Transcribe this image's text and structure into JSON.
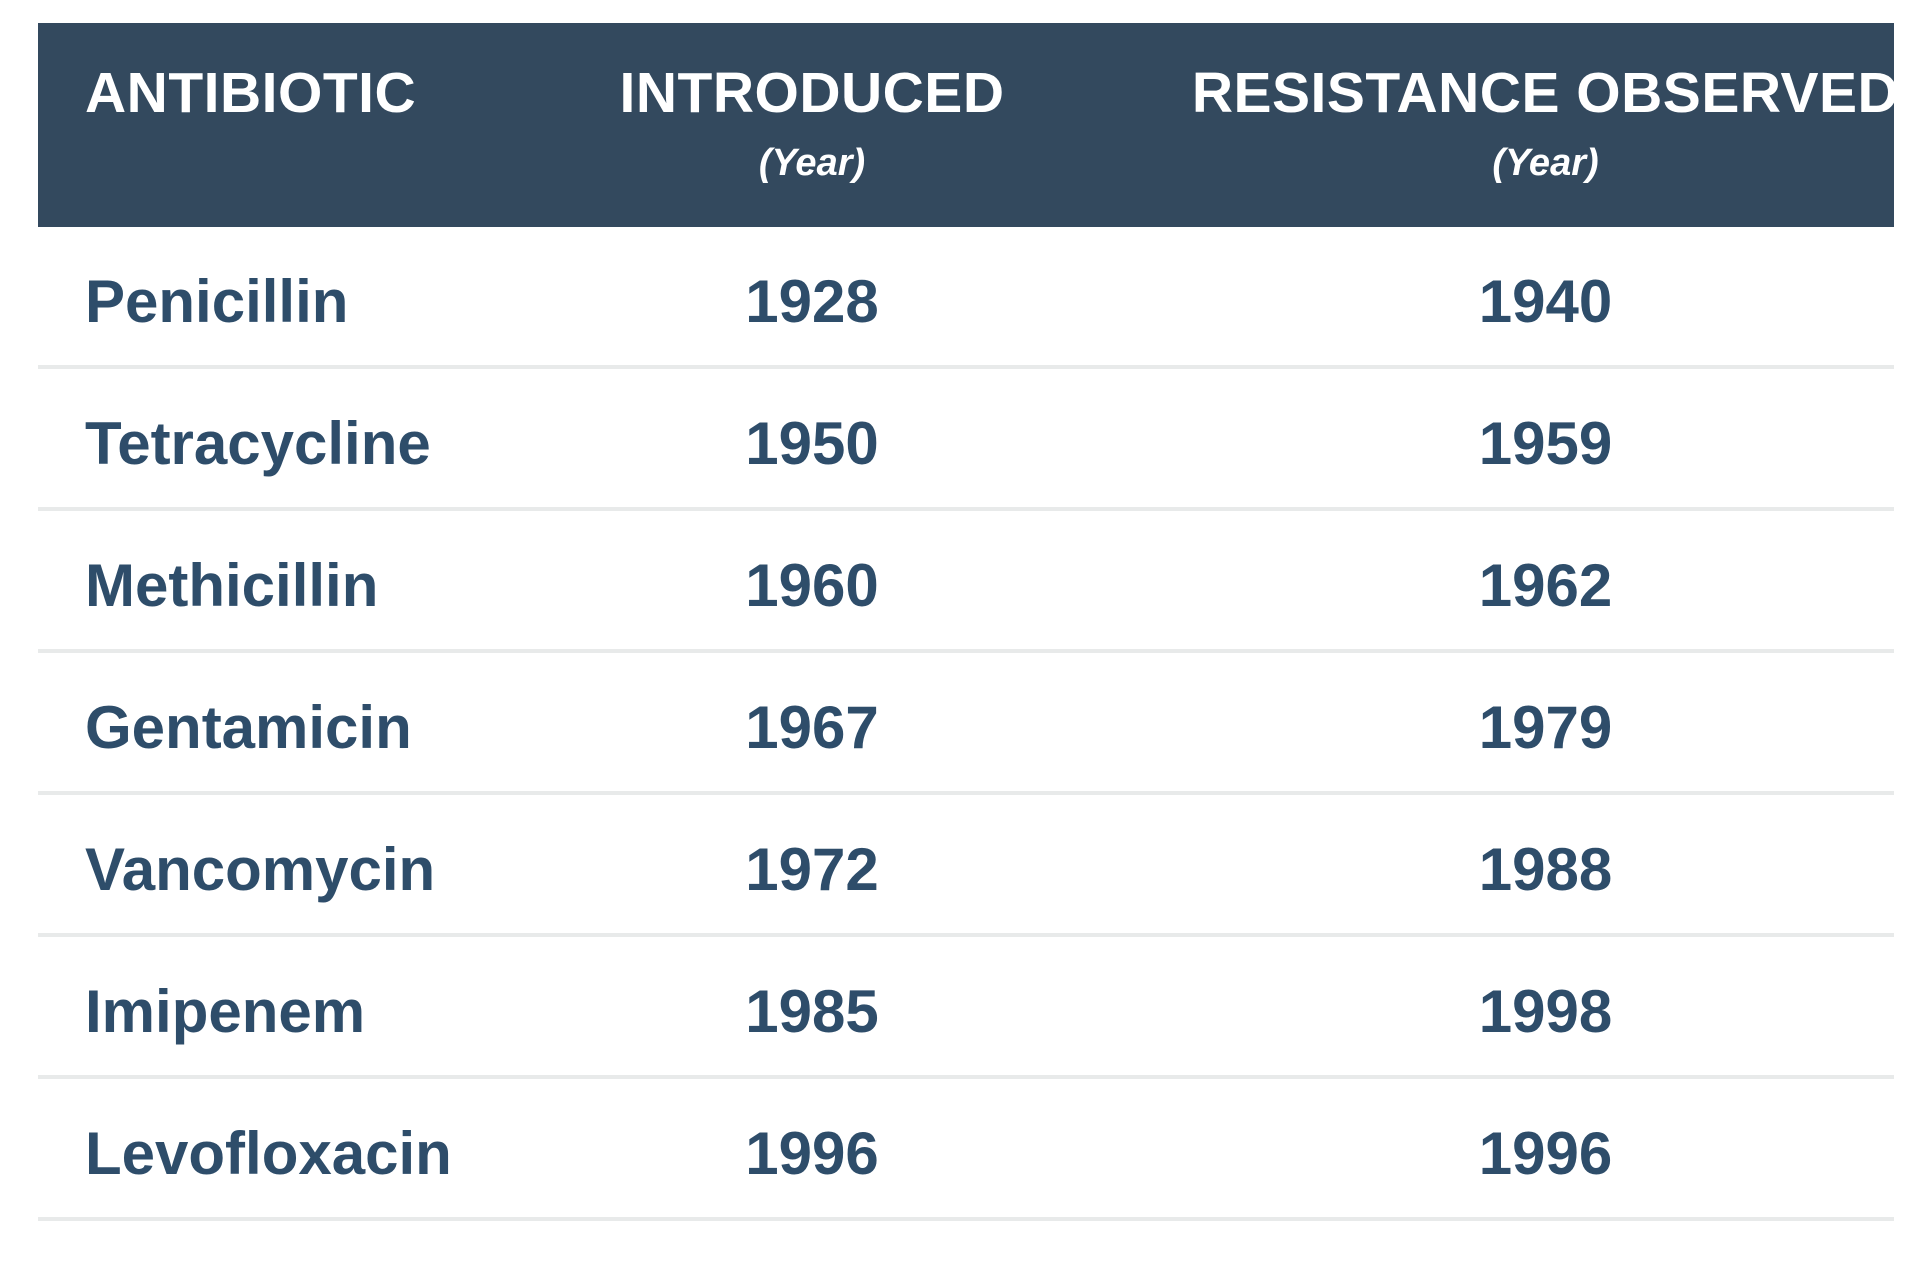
{
  "colors": {
    "header_bg": "#33495E",
    "header_text": "#FFFFFF",
    "row_text": "#2E4D6A",
    "divider": "#E8EAEA",
    "page_bg": "#FFFFFF"
  },
  "table": {
    "headers": [
      {
        "label": "ANTIBIOTIC",
        "sublabel": ""
      },
      {
        "label": "INTRODUCED",
        "sublabel": "(Year)"
      },
      {
        "label": "RESISTANCE OBSERVED",
        "sublabel": "(Year)"
      }
    ],
    "rows": [
      {
        "antibiotic": "Penicillin",
        "introduced": "1928",
        "resistance": "1940"
      },
      {
        "antibiotic": "Tetracycline",
        "introduced": "1950",
        "resistance": "1959"
      },
      {
        "antibiotic": "Methicillin",
        "introduced": "1960",
        "resistance": "1962"
      },
      {
        "antibiotic": "Gentamicin",
        "introduced": "1967",
        "resistance": "1979"
      },
      {
        "antibiotic": "Vancomycin",
        "introduced": "1972",
        "resistance": "1988"
      },
      {
        "antibiotic": "Imipenem",
        "introduced": "1985",
        "resistance": "1998"
      },
      {
        "antibiotic": "Levofloxacin",
        "introduced": "1996",
        "resistance": "1996"
      }
    ]
  },
  "chart_data": {
    "type": "table",
    "title": "",
    "columns": [
      "Antibiotic",
      "Introduced (Year)",
      "Resistance Observed (Year)"
    ],
    "rows": [
      [
        "Penicillin",
        1928,
        1940
      ],
      [
        "Tetracycline",
        1950,
        1959
      ],
      [
        "Methicillin",
        1960,
        1962
      ],
      [
        "Gentamicin",
        1967,
        1979
      ],
      [
        "Vancomycin",
        1972,
        1988
      ],
      [
        "Imipenem",
        1985,
        1998
      ],
      [
        "Levofloxacin",
        1996,
        1996
      ]
    ]
  }
}
